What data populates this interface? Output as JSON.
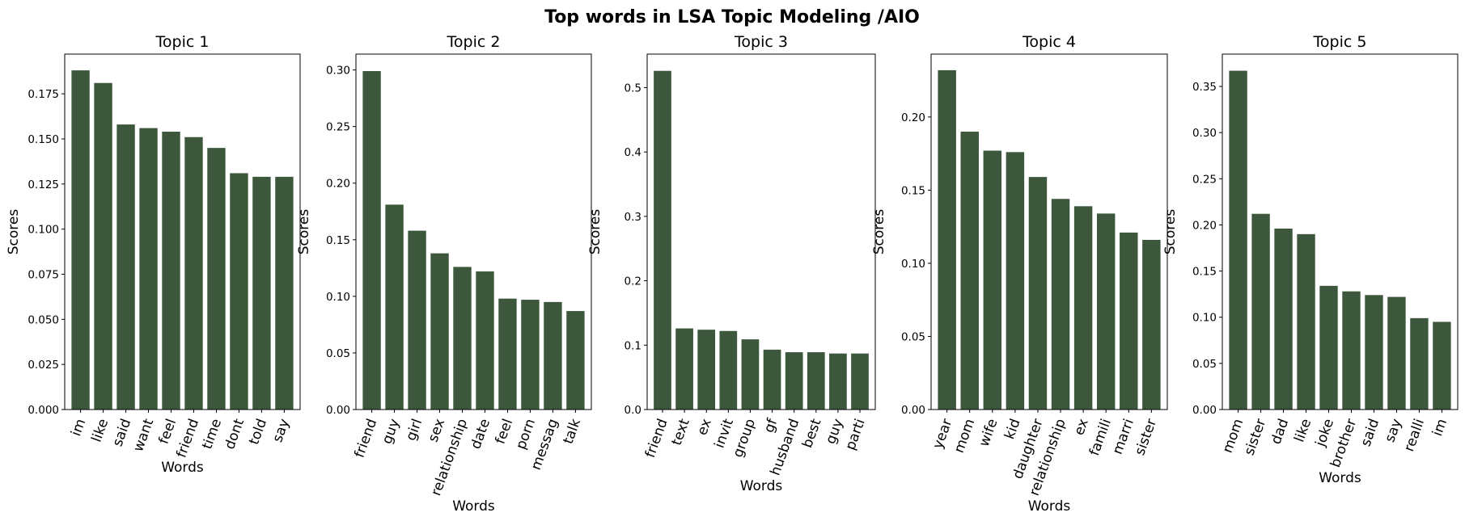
{
  "title": "Top words in LSA Topic Modeling /AIO",
  "colors": {
    "bar": "#3c573c"
  },
  "chart_data": [
    {
      "type": "bar",
      "title": "Topic 1",
      "xlabel": "Words",
      "ylabel": "Scores",
      "categories": [
        "im",
        "like",
        "said",
        "want",
        "feel",
        "friend",
        "time",
        "dont",
        "told",
        "say"
      ],
      "values": [
        0.188,
        0.181,
        0.158,
        0.156,
        0.154,
        0.151,
        0.145,
        0.131,
        0.129,
        0.129
      ],
      "ylim": [
        0,
        0.197
      ],
      "yticks": [
        "0.000",
        "0.025",
        "0.050",
        "0.075",
        "0.100",
        "0.125",
        "0.150",
        "0.175"
      ]
    },
    {
      "type": "bar",
      "title": "Topic 2",
      "xlabel": "Words",
      "ylabel": "Scores",
      "categories": [
        "friend",
        "guy",
        "girl",
        "sex",
        "relationship",
        "date",
        "feel",
        "porn",
        "messag",
        "talk"
      ],
      "values": [
        0.299,
        0.181,
        0.158,
        0.138,
        0.126,
        0.122,
        0.098,
        0.097,
        0.095,
        0.087
      ],
      "ylim": [
        0,
        0.314
      ],
      "yticks": [
        "0.00",
        "0.05",
        "0.10",
        "0.15",
        "0.20",
        "0.25",
        "0.30"
      ]
    },
    {
      "type": "bar",
      "title": "Topic 3",
      "xlabel": "Words",
      "ylabel": "Scores",
      "categories": [
        "friend",
        "text",
        "ex",
        "invit",
        "group",
        "gf",
        "husband",
        "best",
        "guy",
        "parti"
      ],
      "values": [
        0.526,
        0.126,
        0.124,
        0.122,
        0.109,
        0.093,
        0.089,
        0.089,
        0.087,
        0.087
      ],
      "ylim": [
        0,
        0.552
      ],
      "yticks": [
        "0.0",
        "0.1",
        "0.2",
        "0.3",
        "0.4",
        "0.5"
      ]
    },
    {
      "type": "bar",
      "title": "Topic 4",
      "xlabel": "Words",
      "ylabel": "Scores",
      "categories": [
        "year",
        "mom",
        "wife",
        "kid",
        "daughter",
        "relationship",
        "ex",
        "famili",
        "marri",
        "sister"
      ],
      "values": [
        0.232,
        0.19,
        0.177,
        0.176,
        0.159,
        0.144,
        0.139,
        0.134,
        0.121,
        0.116
      ],
      "ylim": [
        0,
        0.243
      ],
      "yticks": [
        "0.00",
        "0.05",
        "0.10",
        "0.15",
        "0.20"
      ]
    },
    {
      "type": "bar",
      "title": "Topic 5",
      "xlabel": "Words",
      "ylabel": "Scores",
      "categories": [
        "mom",
        "sister",
        "dad",
        "like",
        "joke",
        "brother",
        "said",
        "say",
        "realli",
        "im"
      ],
      "values": [
        0.367,
        0.212,
        0.196,
        0.19,
        0.134,
        0.128,
        0.124,
        0.122,
        0.099,
        0.095
      ],
      "ylim": [
        0,
        0.385
      ],
      "yticks": [
        "0.00",
        "0.05",
        "0.10",
        "0.15",
        "0.20",
        "0.25",
        "0.30",
        "0.35"
      ]
    }
  ]
}
